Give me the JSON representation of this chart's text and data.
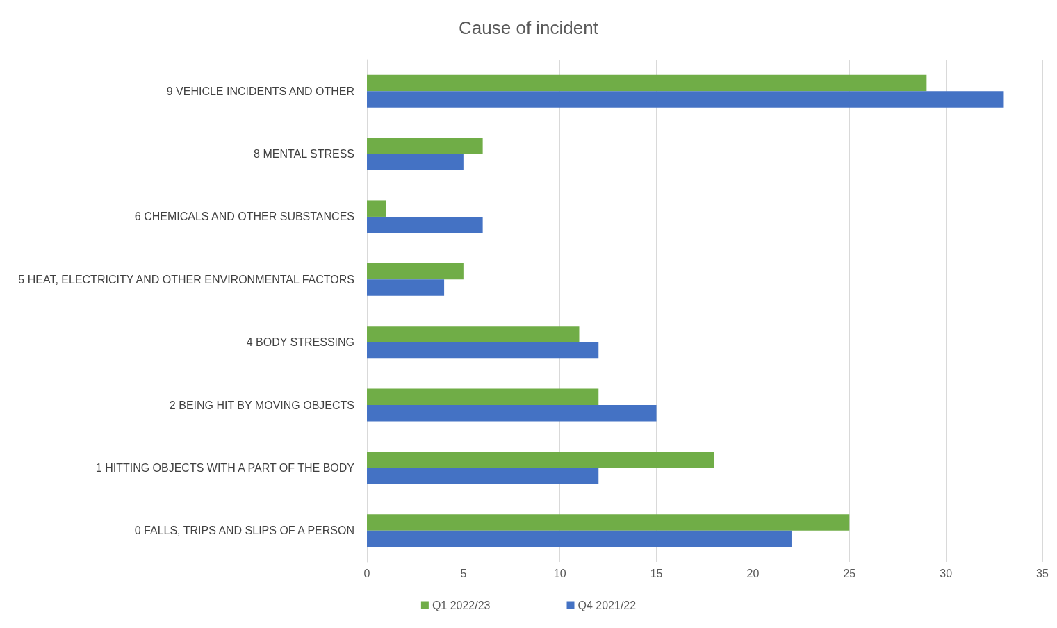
{
  "chart_data": {
    "type": "bar",
    "orientation": "horizontal",
    "title": "Cause of incident",
    "categories": [
      "9 VEHICLE INCIDENTS AND OTHER",
      "8 MENTAL STRESS",
      "6 CHEMICALS AND OTHER SUBSTANCES",
      "5 HEAT, ELECTRICITY AND OTHER ENVIRONMENTAL FACTORS",
      "4 BODY STRESSING",
      "2 BEING HIT BY MOVING OBJECTS",
      "1 HITTING OBJECTS WITH A PART OF THE BODY",
      "0 FALLS, TRIPS AND SLIPS OF A PERSON"
    ],
    "series": [
      {
        "name": "Q1 2022/23",
        "color": "#70ad47",
        "values": [
          29,
          6,
          1,
          5,
          11,
          12,
          18,
          25
        ]
      },
      {
        "name": "Q4 2021/22",
        "color": "#4472c4",
        "values": [
          33,
          5,
          6,
          4,
          12,
          15,
          12,
          22
        ]
      }
    ],
    "xlim": [
      0,
      35
    ],
    "xticks": [
      0,
      5,
      10,
      15,
      20,
      25,
      30,
      35
    ],
    "grid": "x",
    "legend": "bottom"
  }
}
